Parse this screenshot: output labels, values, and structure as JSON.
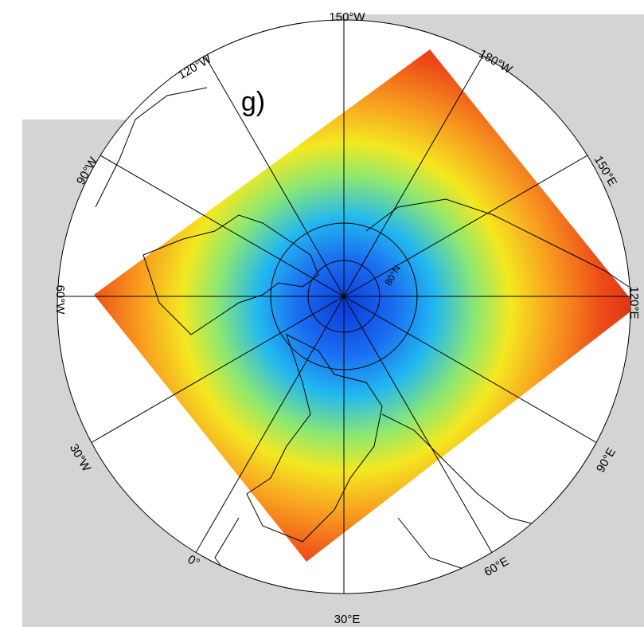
{
  "panel_label": "g)",
  "longitude_labels": [
    "150°W",
    "120°W",
    "180°W",
    "90°W",
    "150°E",
    "60°W",
    "120°E",
    "30°W",
    "90°E",
    "0°",
    "60°E",
    "30°E"
  ],
  "latitude_labels": [
    "80°N"
  ]
}
